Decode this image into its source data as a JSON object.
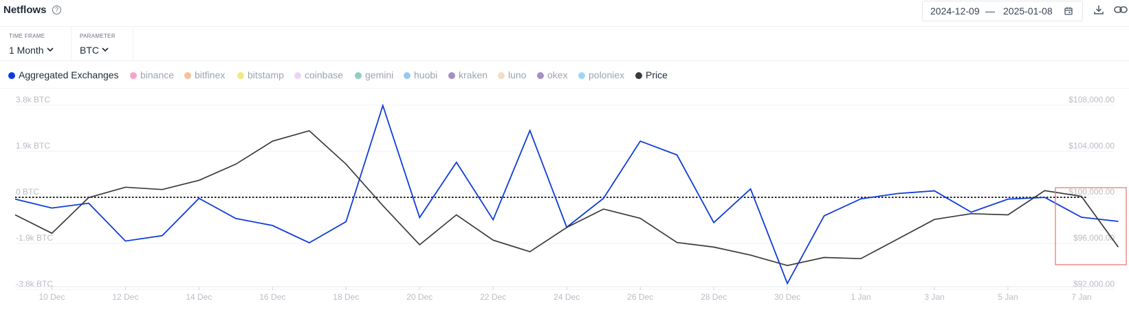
{
  "header": {
    "title": "Netflows",
    "date_from": "2024-12-09",
    "date_separator": "—",
    "date_to": "2025-01-08"
  },
  "controls": {
    "timeframe_label": "TIME FRAME",
    "timeframe_value": "1 Month",
    "parameter_label": "PARAMETER",
    "parameter_value": "BTC"
  },
  "legend": [
    {
      "label": "Aggregated Exchanges",
      "color": "#0d3bdb",
      "active": true
    },
    {
      "label": "binance",
      "color": "#f7a3cd",
      "active": false
    },
    {
      "label": "bitfinex",
      "color": "#f7c09b",
      "active": false
    },
    {
      "label": "bitstamp",
      "color": "#f0ea7e",
      "active": false
    },
    {
      "label": "coinbase",
      "color": "#ead5f7",
      "active": false
    },
    {
      "label": "gemini",
      "color": "#8fcfc0",
      "active": false
    },
    {
      "label": "huobi",
      "color": "#93c9f5",
      "active": false
    },
    {
      "label": "kraken",
      "color": "#a58fc7",
      "active": false
    },
    {
      "label": "luno",
      "color": "#f5dcc4",
      "active": false
    },
    {
      "label": "okex",
      "color": "#a58fc7",
      "active": false
    },
    {
      "label": "poloniex",
      "color": "#9fd6f5",
      "active": false
    },
    {
      "label": "Price",
      "color": "#3a3a3a",
      "active": true
    }
  ],
  "chart_data": {
    "type": "line",
    "x": [
      "9 Dec",
      "10 Dec",
      "11 Dec",
      "12 Dec",
      "13 Dec",
      "14 Dec",
      "15 Dec",
      "16 Dec",
      "17 Dec",
      "18 Dec",
      "19 Dec",
      "20 Dec",
      "21 Dec",
      "22 Dec",
      "23 Dec",
      "24 Dec",
      "25 Dec",
      "26 Dec",
      "27 Dec",
      "28 Dec",
      "29 Dec",
      "30 Dec",
      "31 Dec",
      "1 Jan",
      "2 Jan",
      "3 Jan",
      "4 Jan",
      "5 Jan",
      "6 Jan",
      "7 Jan",
      "8 Jan"
    ],
    "x_tick_labels": [
      "10 Dec",
      "12 Dec",
      "14 Dec",
      "16 Dec",
      "18 Dec",
      "20 Dec",
      "22 Dec",
      "24 Dec",
      "26 Dec",
      "28 Dec",
      "30 Dec",
      "1 Jan",
      "3 Jan",
      "5 Jan",
      "7 Jan"
    ],
    "y_left": {
      "unit": "BTC",
      "range": [
        -3.8,
        3.8
      ],
      "tick_values": [
        3.8,
        1.9,
        0,
        -1.9,
        -3.8
      ],
      "tick_labels": [
        "3.8k BTC",
        "1.9k BTC",
        "0 BTC",
        "-1.9k BTC",
        "-3.8k BTC"
      ]
    },
    "y_right": {
      "unit": "USD",
      "range": [
        92000,
        108000
      ],
      "tick_values": [
        108000,
        104000,
        100000,
        96000,
        92000
      ],
      "tick_labels": [
        "$108,000.00",
        "$104,000.00",
        "$100,000.00",
        "$96,000.00",
        "$92,000.00"
      ]
    },
    "zero_line": "dotted",
    "grid": true,
    "series": [
      {
        "name": "Aggregated Exchanges",
        "axis": "left",
        "color": "#0d3bdb",
        "values": [
          -0.3,
          -0.67,
          -0.47,
          -2.03,
          -1.81,
          -0.27,
          -1.1,
          -1.39,
          -2.1,
          -1.23,
          3.56,
          -1.06,
          1.22,
          -1.15,
          2.53,
          -1.46,
          -0.27,
          2.09,
          1.52,
          -1.27,
          0.12,
          -3.78,
          -0.99,
          -0.29,
          -0.07,
          0.04,
          -0.84,
          -0.3,
          -0.23,
          -1.05,
          -1.22
        ]
      },
      {
        "name": "Price",
        "axis": "right",
        "color": "#3a3a3a",
        "values": [
          98000,
          96400,
          99500,
          100400,
          100200,
          101000,
          102400,
          104400,
          105300,
          102400,
          98800,
          95400,
          98000,
          95800,
          94800,
          96900,
          98500,
          97700,
          95600,
          95200,
          94500,
          93600,
          94300,
          94200,
          95900,
          97600,
          98100,
          98000,
          100100,
          99600,
          95200
        ]
      }
    ]
  }
}
